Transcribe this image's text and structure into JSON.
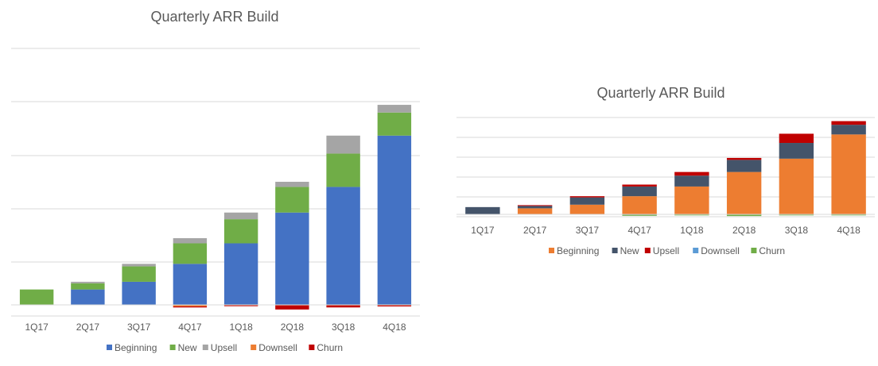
{
  "chart_data": [
    {
      "type": "bar",
      "stacked": true,
      "title": "Quarterly ARR Build",
      "categories": [
        "1Q17",
        "2Q17",
        "3Q17",
        "4Q17",
        "1Q18",
        "2Q18",
        "3Q18",
        "4Q18"
      ],
      "series": [
        {
          "name": "Beginning",
          "color": "#4472C4",
          "values": [
            0,
            3,
            4.5,
            8,
            12,
            18,
            23,
            33
          ]
        },
        {
          "name": "New",
          "color": "#70AD47",
          "values": [
            3,
            1.2,
            3,
            4,
            4.7,
            5,
            6.5,
            4.5
          ]
        },
        {
          "name": "Upsell",
          "color": "#A5A5A5",
          "values": [
            0,
            0.3,
            0.5,
            1,
            1.3,
            1,
            3.5,
            1.5
          ]
        },
        {
          "name": "Downsell",
          "color": "#ED7D31",
          "values": [
            0,
            0,
            0,
            -0.3,
            -0.1,
            -0.1,
            -0.1,
            -0.1
          ]
        },
        {
          "name": "Churn",
          "color": "#C00000",
          "values": [
            0,
            0,
            0,
            -0.2,
            -0.1,
            -0.8,
            -0.4,
            -0.2
          ]
        }
      ],
      "ylim": [
        -1,
        50
      ],
      "grid": true,
      "legend": "bottom"
    },
    {
      "type": "bar",
      "stacked": true,
      "title": "Quarterly ARR Build",
      "categories": [
        "1Q17",
        "2Q17",
        "3Q17",
        "4Q17",
        "1Q18",
        "2Q18",
        "3Q18",
        "4Q18"
      ],
      "series": [
        {
          "name": "Beginning",
          "color": "#ED7D31",
          "values": [
            0,
            2.5,
            4,
            7.5,
            11.5,
            17.5,
            23,
            33
          ]
        },
        {
          "name": "New",
          "color": "#44546A",
          "values": [
            3,
            1,
            3,
            4,
            4.5,
            5,
            6.5,
            4
          ]
        },
        {
          "name": "Upsell",
          "color": "#C00000",
          "values": [
            0,
            0.3,
            0.5,
            0.8,
            1.5,
            0.8,
            3.8,
            1.5
          ]
        },
        {
          "name": "Downsell",
          "color": "#5B9BD5",
          "values": [
            0,
            0,
            0,
            -0.2,
            -0.1,
            -0.1,
            -0.1,
            -0.1
          ]
        },
        {
          "name": "Churn",
          "color": "#70AD47",
          "values": [
            0,
            0,
            0,
            -0.4,
            -0.3,
            -0.6,
            -0.2,
            -0.2
          ]
        }
      ],
      "ylim": [
        -1,
        40
      ],
      "grid": true,
      "legend": "bottom"
    }
  ]
}
